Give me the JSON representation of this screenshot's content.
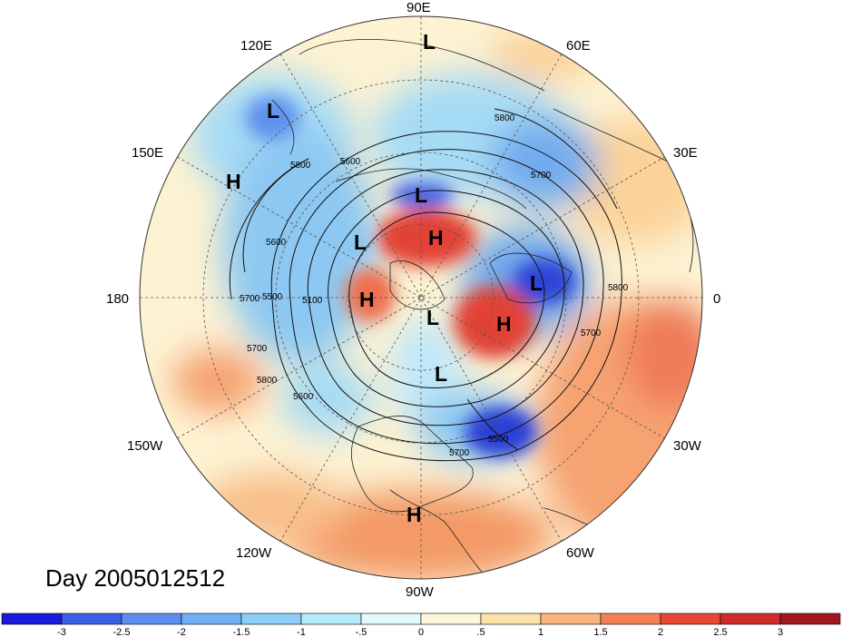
{
  "map": {
    "date_label": "Day 2005012512",
    "longitude_labels": [
      {
        "id": "90e",
        "text": "90E"
      },
      {
        "id": "60e",
        "text": "60E"
      },
      {
        "id": "30e",
        "text": "30E"
      },
      {
        "id": "0",
        "text": "0"
      },
      {
        "id": "30w",
        "text": "30W"
      },
      {
        "id": "60w",
        "text": "60W"
      },
      {
        "id": "90w",
        "text": "90W"
      },
      {
        "id": "120w",
        "text": "120W"
      },
      {
        "id": "150w",
        "text": "150W"
      },
      {
        "id": "180",
        "text": "180"
      },
      {
        "id": "150e",
        "text": "150E"
      },
      {
        "id": "120e",
        "text": "120E"
      }
    ],
    "pressure_centers": [
      {
        "id": "l-90e",
        "text": "L"
      },
      {
        "id": "l-120e",
        "text": "L"
      },
      {
        "id": "h-150e",
        "text": "H"
      },
      {
        "id": "l-siberia",
        "text": "L"
      },
      {
        "id": "h-arctic-siberia",
        "text": "H"
      },
      {
        "id": "l-pacific-arctic",
        "text": "L"
      },
      {
        "id": "h-alaska",
        "text": "H"
      },
      {
        "id": "l-canada",
        "text": "L"
      },
      {
        "id": "l-hudson",
        "text": "L"
      },
      {
        "id": "h-greenland",
        "text": "H"
      },
      {
        "id": "l-europe",
        "text": "L"
      },
      {
        "id": "h-caribbean",
        "text": "H"
      }
    ],
    "contour_labels": [
      {
        "id": "c5800-a",
        "text": "5800"
      },
      {
        "id": "c5800-b",
        "text": "5800"
      },
      {
        "id": "c5600-a",
        "text": "5600"
      },
      {
        "id": "c5700-a",
        "text": "5700"
      },
      {
        "id": "c5600-b",
        "text": "5600"
      },
      {
        "id": "c5500-a",
        "text": "5500"
      },
      {
        "id": "c5100-a",
        "text": "5100"
      },
      {
        "id": "c5700-b",
        "text": "5700"
      },
      {
        "id": "c5800-c",
        "text": "5800"
      },
      {
        "id": "c5600-c",
        "text": "5600"
      },
      {
        "id": "c5700-c",
        "text": "5700"
      },
      {
        "id": "c5500-b",
        "text": "5500"
      },
      {
        "id": "c5800-d",
        "text": "5800"
      },
      {
        "id": "c5700-d",
        "text": "5700"
      },
      {
        "id": "c5700-e",
        "text": "5700"
      }
    ]
  },
  "colorbar": {
    "ticks": [
      "-3",
      "-2.5",
      "-2",
      "-1.5",
      "-1",
      "-.5",
      "0",
      ".5",
      "1",
      "1.5",
      "2",
      "2.5",
      "3"
    ],
    "colors": [
      "#1a1adc",
      "#3c5fe6",
      "#5c8ef0",
      "#70aef5",
      "#8ccdfa",
      "#b4ecfb",
      "#e2f9fd",
      "#fdf7dc",
      "#fde2a8",
      "#f9b57c",
      "#f48056",
      "#ea4636",
      "#d12a2a",
      "#a3151f"
    ]
  }
}
